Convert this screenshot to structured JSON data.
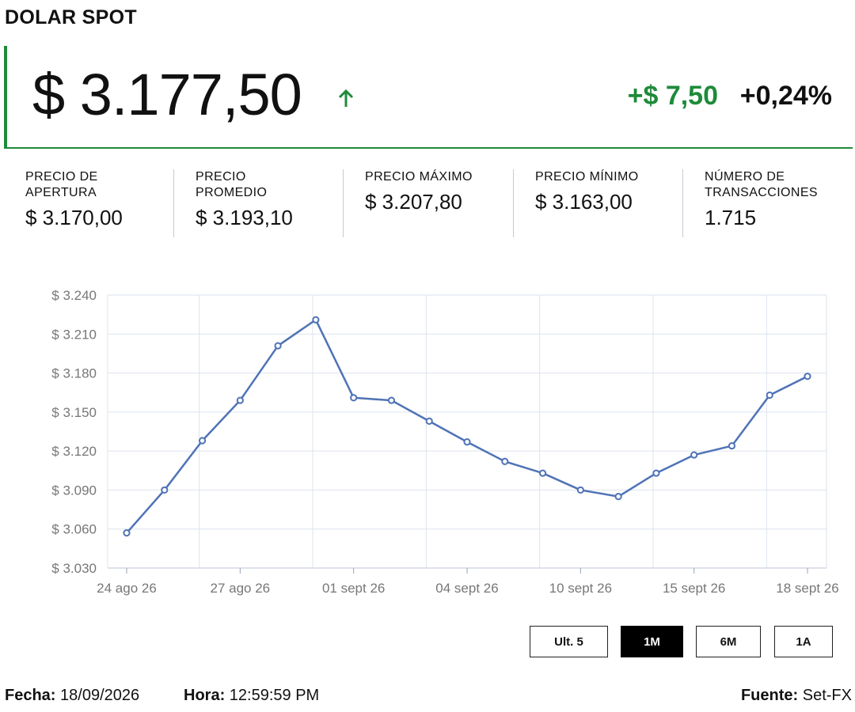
{
  "header": {
    "title": "DOLAR SPOT"
  },
  "quote": {
    "price": "$ 3.177,50",
    "direction_icon": "arrow-up-icon",
    "change_abs": "+$ 7,50",
    "change_pct": "+0,24%",
    "accent_color": "#1e8b3a"
  },
  "stats": [
    {
      "label": "PRECIO DE\nAPERTURA",
      "value": "$ 3.170,00"
    },
    {
      "label": "PRECIO\nPROMEDIO",
      "value": "$ 3.193,10"
    },
    {
      "label": "PRECIO MÁXIMO",
      "value": "$ 3.207,80"
    },
    {
      "label": "PRECIO MÍNIMO",
      "value": "$ 3.163,00"
    },
    {
      "label": "NÚMERO DE\nTRANSACCIONES",
      "value": "1.715"
    }
  ],
  "chart_data": {
    "type": "line",
    "title": "",
    "xlabel": "",
    "ylabel": "",
    "ylim": [
      3030,
      3240
    ],
    "y_ticks": [
      3030,
      3060,
      3090,
      3120,
      3150,
      3180,
      3210,
      3240
    ],
    "y_tick_labels": [
      "$ 3.030",
      "$ 3.060",
      "$ 3.090",
      "$ 3.120",
      "$ 3.150",
      "$ 3.180",
      "$ 3.210",
      "$ 3.240"
    ],
    "x_tick_labels": [
      "24 ago 26",
      "27 ago 26",
      "01 sept 26",
      "04 sept 26",
      "10 sept 26",
      "15 sept 26",
      "18 sept 26"
    ],
    "grid": true,
    "line_color": "#4f73b6",
    "series": [
      {
        "values": [
          3057,
          3090,
          3128,
          3159,
          3201,
          3221,
          3161,
          3159,
          3143,
          3127,
          3112,
          3103,
          3090,
          3085,
          3103,
          3117,
          3124,
          3163,
          3177.5
        ]
      }
    ]
  },
  "range_buttons": [
    {
      "label": "Ult. 5",
      "active": false
    },
    {
      "label": "1M",
      "active": true
    },
    {
      "label": "6M",
      "active": false
    },
    {
      "label": "1A",
      "active": false
    }
  ],
  "footer": {
    "date_label": "Fecha:",
    "date_value": "18/09/2026",
    "time_label": "Hora:",
    "time_value": "12:59:59 PM",
    "source_label": "Fuente:",
    "source_value": "Set-FX"
  }
}
